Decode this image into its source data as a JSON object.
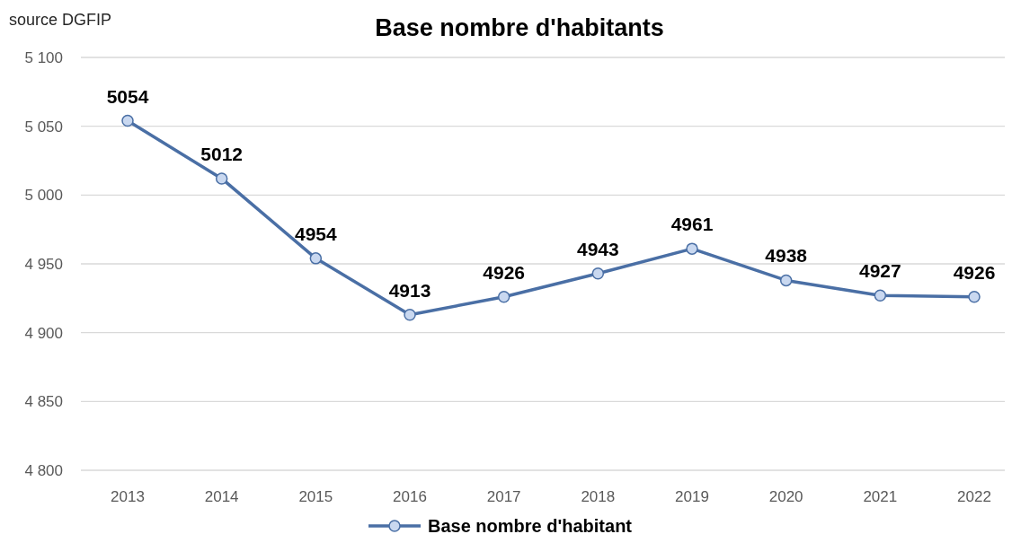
{
  "chart_data": {
    "type": "line",
    "title": "Base nombre d'habitants",
    "annotations": [
      "source DGFIP"
    ],
    "categories": [
      "2013",
      "2014",
      "2015",
      "2016",
      "2017",
      "2018",
      "2019",
      "2020",
      "2021",
      "2022"
    ],
    "series": [
      {
        "name": "Base nombre d'habitant",
        "color": "#4a6fa5",
        "values": [
          5054,
          5012,
          4954,
          4913,
          4926,
          4943,
          4961,
          4938,
          4927,
          4926
        ]
      }
    ],
    "ylim": [
      4800,
      5100
    ],
    "yticks": [
      {
        "value": 4800,
        "label": "4 800"
      },
      {
        "value": 4850,
        "label": "4 850"
      },
      {
        "value": 4900,
        "label": "4 900"
      },
      {
        "value": 4950,
        "label": "4 950"
      },
      {
        "value": 5000,
        "label": "5 000"
      },
      {
        "value": 5050,
        "label": "5 050"
      },
      {
        "value": 5100,
        "label": "5 100"
      }
    ],
    "grid": "y",
    "legend": "bottom",
    "marker": "circle",
    "line_style": "solid",
    "data_labels": true
  }
}
